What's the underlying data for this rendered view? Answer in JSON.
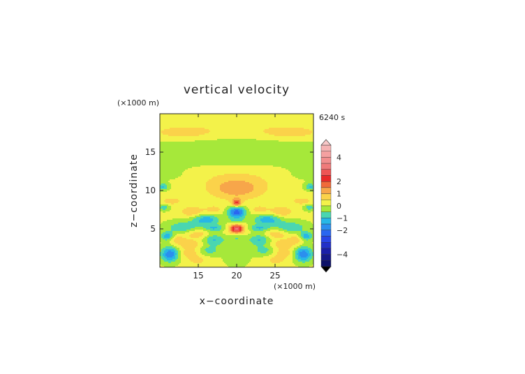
{
  "chart_data": {
    "type": "heatmap",
    "title": "vertical velocity",
    "time_label": "6240 s",
    "xlabel": "x−coordinate",
    "ylabel": "z−coordinate",
    "x_unit": "(×1000 m)",
    "y_unit": "(×1000 m)",
    "xlim": [
      10,
      30
    ],
    "ylim": [
      0,
      20
    ],
    "x_ticks": [
      15,
      20,
      25
    ],
    "y_ticks": [
      5,
      10,
      15
    ],
    "x_tick_labels": [
      "15",
      "20",
      "25"
    ],
    "y_tick_labels": [
      "5",
      "10",
      "15"
    ],
    "colorbar": {
      "range": [
        -5,
        5
      ],
      "tick_values": [
        4,
        2,
        1,
        0,
        -1,
        -2,
        -4
      ],
      "tick_labels": [
        "4",
        "2",
        "1",
        "0",
        "−1",
        "−2",
        "−4"
      ],
      "levels": [
        {
          "min": 4.5,
          "max": 5.0,
          "color": "#f5b3b3"
        },
        {
          "min": 4.0,
          "max": 4.5,
          "color": "#f4a0a0"
        },
        {
          "min": 3.5,
          "max": 4.0,
          "color": "#f28e8e"
        },
        {
          "min": 3.0,
          "max": 3.5,
          "color": "#f07a7a"
        },
        {
          "min": 2.5,
          "max": 3.0,
          "color": "#ee5555"
        },
        {
          "min": 2.0,
          "max": 2.5,
          "color": "#e82a2a"
        },
        {
          "min": 1.5,
          "max": 2.0,
          "color": "#f06a3a"
        },
        {
          "min": 1.0,
          "max": 1.5,
          "color": "#f7a64a"
        },
        {
          "min": 0.5,
          "max": 1.0,
          "color": "#fbd24a"
        },
        {
          "min": 0.0,
          "max": 0.5,
          "color": "#f3f24a"
        },
        {
          "min": -0.5,
          "max": 0.0,
          "color": "#a6e83a"
        },
        {
          "min": -1.0,
          "max": -0.5,
          "color": "#4ad6b0"
        },
        {
          "min": -1.5,
          "max": -1.0,
          "color": "#27b7e6"
        },
        {
          "min": -2.0,
          "max": -1.5,
          "color": "#2b8fee"
        },
        {
          "min": -2.5,
          "max": -2.0,
          "color": "#2a66f0"
        },
        {
          "min": -3.0,
          "max": -2.5,
          "color": "#2845e6"
        },
        {
          "min": -3.5,
          "max": -3.0,
          "color": "#2230c8"
        },
        {
          "min": -4.0,
          "max": -3.5,
          "color": "#1a1fa8"
        },
        {
          "min": -4.5,
          "max": -4.0,
          "color": "#141888"
        },
        {
          "min": -5.0,
          "max": -4.5,
          "color": "#0e1268"
        }
      ],
      "over_color": "#f8c8c8",
      "under_color": "#000000"
    },
    "field_blobs": [
      {
        "x": 20,
        "z": 8.4,
        "sx": 0.45,
        "sz": 0.35,
        "w": 1.9
      },
      {
        "x": 20,
        "z": 10.2,
        "sx": 2.4,
        "sz": 1.0,
        "w": 1.1
      },
      {
        "x": 20,
        "z": 11.6,
        "sx": 5.0,
        "sz": 1.4,
        "w": 0.3
      },
      {
        "x": 20,
        "z": 7.2,
        "sx": 0.8,
        "sz": 0.5,
        "w": -2.4
      },
      {
        "x": 20,
        "z": 5.0,
        "sx": 0.55,
        "sz": 0.35,
        "w": 2.6
      },
      {
        "x": 20,
        "z": 5.0,
        "sx": 1.6,
        "sz": 0.7,
        "w": 0.6
      },
      {
        "x": 20,
        "z": 6.1,
        "sx": 0.9,
        "sz": 0.35,
        "w": -0.8
      },
      {
        "x": 20,
        "z": 3.9,
        "sx": 0.9,
        "sz": 0.35,
        "w": -0.6
      },
      {
        "x": 20,
        "z": 2.0,
        "sx": 1.3,
        "sz": 1.4,
        "w": -0.35
      },
      {
        "x": 16.0,
        "z": 6.2,
        "sx": 1.3,
        "sz": 0.5,
        "w": -1.4
      },
      {
        "x": 24.0,
        "z": 6.2,
        "sx": 1.3,
        "sz": 0.5,
        "w": -1.4
      },
      {
        "x": 17.2,
        "z": 5.1,
        "sx": 1.0,
        "sz": 0.35,
        "w": -1.2
      },
      {
        "x": 22.8,
        "z": 5.1,
        "sx": 1.0,
        "sz": 0.35,
        "w": -1.2
      },
      {
        "x": 14.2,
        "z": 7.2,
        "sx": 1.0,
        "sz": 0.5,
        "w": 0.9
      },
      {
        "x": 25.8,
        "z": 7.2,
        "sx": 1.0,
        "sz": 0.5,
        "w": 0.9
      },
      {
        "x": 17.0,
        "z": 7.5,
        "sx": 0.9,
        "sz": 0.4,
        "w": 0.6
      },
      {
        "x": 23.0,
        "z": 7.5,
        "sx": 0.9,
        "sz": 0.4,
        "w": 0.6
      },
      {
        "x": 13.0,
        "z": 5.2,
        "sx": 1.5,
        "sz": 0.55,
        "w": -1.0
      },
      {
        "x": 27.0,
        "z": 5.2,
        "sx": 1.5,
        "sz": 0.55,
        "w": -1.0
      },
      {
        "x": 15.0,
        "z": 4.3,
        "sx": 1.2,
        "sz": 0.45,
        "w": 0.8
      },
      {
        "x": 25.0,
        "z": 4.3,
        "sx": 1.2,
        "sz": 0.45,
        "w": 0.8
      },
      {
        "x": 17.0,
        "z": 3.6,
        "sx": 1.0,
        "sz": 0.55,
        "w": -1.2
      },
      {
        "x": 23.0,
        "z": 3.6,
        "sx": 1.0,
        "sz": 0.55,
        "w": -1.2
      },
      {
        "x": 13.8,
        "z": 3.0,
        "sx": 1.4,
        "sz": 0.4,
        "w": 0.7
      },
      {
        "x": 26.2,
        "z": 3.0,
        "sx": 1.4,
        "sz": 0.4,
        "w": 0.7
      },
      {
        "x": 11.0,
        "z": 4.0,
        "sx": 0.6,
        "sz": 0.4,
        "w": -1.6
      },
      {
        "x": 29.0,
        "z": 4.0,
        "sx": 0.6,
        "sz": 0.4,
        "w": -1.6
      },
      {
        "x": 12.0,
        "z": 3.7,
        "sx": 0.8,
        "sz": 0.4,
        "w": 0.7
      },
      {
        "x": 28.0,
        "z": 3.7,
        "sx": 0.8,
        "sz": 0.4,
        "w": 0.7
      },
      {
        "x": 11.3,
        "z": 1.7,
        "sx": 0.8,
        "sz": 0.7,
        "w": -2.0
      },
      {
        "x": 28.7,
        "z": 1.7,
        "sx": 0.8,
        "sz": 0.7,
        "w": -2.0
      },
      {
        "x": 13.8,
        "z": 1.8,
        "sx": 0.9,
        "sz": 0.5,
        "w": 0.7
      },
      {
        "x": 26.2,
        "z": 1.8,
        "sx": 0.9,
        "sz": 0.5,
        "w": 0.7
      },
      {
        "x": 16.5,
        "z": 2.2,
        "sx": 0.9,
        "sz": 0.45,
        "w": -0.8
      },
      {
        "x": 23.5,
        "z": 2.2,
        "sx": 0.9,
        "sz": 0.45,
        "w": -0.8
      },
      {
        "x": 15.0,
        "z": 0.9,
        "sx": 0.8,
        "sz": 0.4,
        "w": 0.6
      },
      {
        "x": 25.0,
        "z": 0.9,
        "sx": 0.8,
        "sz": 0.4,
        "w": 0.6
      },
      {
        "x": 10.4,
        "z": 10.5,
        "sx": 0.5,
        "sz": 0.3,
        "w": -1.2
      },
      {
        "x": 29.6,
        "z": 10.5,
        "sx": 0.5,
        "sz": 0.3,
        "w": -1.2
      },
      {
        "x": 11.5,
        "z": 8.6,
        "sx": 0.8,
        "sz": 0.3,
        "w": 0.8
      },
      {
        "x": 28.5,
        "z": 8.6,
        "sx": 0.8,
        "sz": 0.3,
        "w": 0.8
      },
      {
        "x": 10.5,
        "z": 7.8,
        "sx": 0.5,
        "sz": 0.3,
        "w": -0.9
      },
      {
        "x": 29.5,
        "z": 7.8,
        "sx": 0.5,
        "sz": 0.3,
        "w": -0.9
      },
      {
        "x": 20,
        "z": 16.0,
        "sx": 9.0,
        "sz": 0.9,
        "w": -0.35
      },
      {
        "x": 20,
        "z": 13.7,
        "sx": 9.0,
        "sz": 0.6,
        "w": -0.3
      },
      {
        "x": 20,
        "z": 14.8,
        "sx": 3.0,
        "sz": 0.5,
        "w": -0.3
      },
      {
        "x": 11.5,
        "z": 12.2,
        "sx": 2.0,
        "sz": 0.9,
        "w": -0.25
      },
      {
        "x": 28.5,
        "z": 12.2,
        "sx": 2.0,
        "sz": 0.9,
        "w": -0.25
      },
      {
        "x": 13.0,
        "z": 17.5,
        "sx": 2.5,
        "sz": 0.5,
        "w": 0.6
      },
      {
        "x": 27.0,
        "z": 17.5,
        "sx": 2.5,
        "sz": 0.5,
        "w": 0.6
      },
      {
        "x": 20,
        "z": 18.5,
        "sx": 9.0,
        "sz": 1.5,
        "w": 0.3
      }
    ],
    "field_base": 0.1
  }
}
